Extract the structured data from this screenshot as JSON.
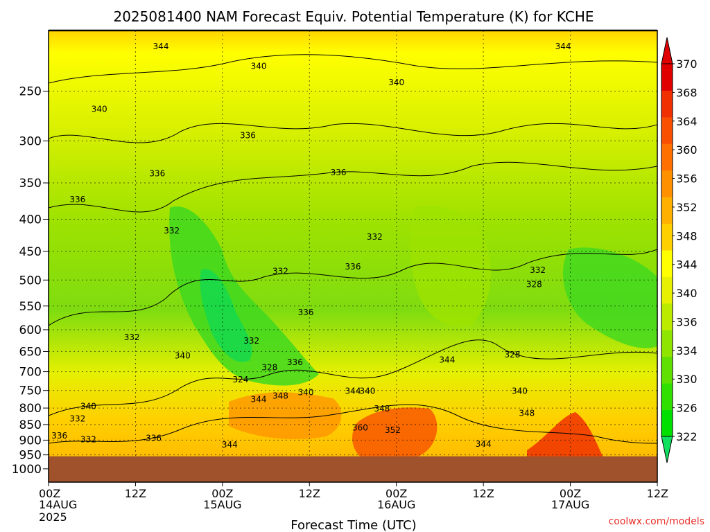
{
  "chart_data": {
    "type": "heatmap",
    "title": "2025081400 NAM Forecast Equiv. Potential Temperature (K) for KCHE",
    "xlabel": "Forecast Time (UTC)",
    "ylabel": "",
    "credit": "coolwx.com/models",
    "x_ticks": [
      {
        "hour": 0,
        "label": "00Z",
        "date": "14AUG",
        "year": "2025"
      },
      {
        "hour": 12,
        "label": "12Z",
        "date": "",
        "year": ""
      },
      {
        "hour": 24,
        "label": "00Z",
        "date": "15AUG",
        "year": ""
      },
      {
        "hour": 36,
        "label": "12Z",
        "date": "",
        "year": ""
      },
      {
        "hour": 48,
        "label": "00Z",
        "date": "16AUG",
        "year": ""
      },
      {
        "hour": 60,
        "label": "12Z",
        "date": "",
        "year": ""
      },
      {
        "hour": 72,
        "label": "00Z",
        "date": "17AUG",
        "year": ""
      },
      {
        "hour": 84,
        "label": "12Z",
        "date": "",
        "year": ""
      }
    ],
    "xlim": [
      0,
      84
    ],
    "y_ticks": [
      250,
      300,
      350,
      400,
      450,
      500,
      550,
      600,
      650,
      700,
      750,
      800,
      850,
      900,
      950,
      1000
    ],
    "ylim": [
      200,
      1050
    ],
    "y_scale": "log",
    "colorbar": {
      "ticks": [
        322,
        326,
        330,
        334,
        336,
        340,
        344,
        348,
        352,
        356,
        360,
        364,
        368,
        370
      ],
      "colors": [
        "#00e000",
        "#2fe000",
        "#5fe000",
        "#8fe400",
        "#bdeb00",
        "#e6f000",
        "#ffff00",
        "#ffd000",
        "#ffb000",
        "#ff9000",
        "#ff7000",
        "#f85000",
        "#f03000",
        "#e00000"
      ]
    },
    "ground_color": "#a0522d",
    "ground_top_hpa": 955,
    "contour_labels": [
      {
        "hour": 15.5,
        "p": 212,
        "text": "344"
      },
      {
        "hour": 29,
        "p": 228,
        "text": "340"
      },
      {
        "hour": 71,
        "p": 212,
        "text": "344"
      },
      {
        "hour": 48,
        "p": 242,
        "text": "340"
      },
      {
        "hour": 7,
        "p": 267,
        "text": "340"
      },
      {
        "hour": 27.5,
        "p": 294,
        "text": "336"
      },
      {
        "hour": 15,
        "p": 338,
        "text": "336"
      },
      {
        "hour": 40,
        "p": 337,
        "text": "336"
      },
      {
        "hour": 4,
        "p": 372,
        "text": "336"
      },
      {
        "hour": 17,
        "p": 417,
        "text": "332"
      },
      {
        "hour": 45,
        "p": 427,
        "text": "332"
      },
      {
        "hour": 32,
        "p": 484,
        "text": "332"
      },
      {
        "hour": 42,
        "p": 476,
        "text": "336"
      },
      {
        "hour": 67.5,
        "p": 482,
        "text": "332"
      },
      {
        "hour": 67,
        "p": 508,
        "text": "328"
      },
      {
        "hour": 35.5,
        "p": 563,
        "text": "336"
      },
      {
        "hour": 11.5,
        "p": 617,
        "text": "332"
      },
      {
        "hour": 28,
        "p": 625,
        "text": "332"
      },
      {
        "hour": 18.5,
        "p": 660,
        "text": "340"
      },
      {
        "hour": 64,
        "p": 658,
        "text": "328"
      },
      {
        "hour": 55,
        "p": 670,
        "text": "344"
      },
      {
        "hour": 30.5,
        "p": 689,
        "text": "328"
      },
      {
        "hour": 34,
        "p": 676,
        "text": "336"
      },
      {
        "hour": 26.5,
        "p": 721,
        "text": "324"
      },
      {
        "hour": 32,
        "p": 765,
        "text": "348"
      },
      {
        "hour": 29,
        "p": 775,
        "text": "344"
      },
      {
        "hour": 35.5,
        "p": 755,
        "text": "340"
      },
      {
        "hour": 42,
        "p": 752,
        "text": "344"
      },
      {
        "hour": 44,
        "p": 752,
        "text": "340"
      },
      {
        "hour": 65,
        "p": 752,
        "text": "340"
      },
      {
        "hour": 5.5,
        "p": 795,
        "text": "340"
      },
      {
        "hour": 46,
        "p": 802,
        "text": "348"
      },
      {
        "hour": 66,
        "p": 815,
        "text": "348"
      },
      {
        "hour": 4,
        "p": 832,
        "text": "332"
      },
      {
        "hour": 43,
        "p": 860,
        "text": "360"
      },
      {
        "hour": 47.5,
        "p": 868,
        "text": "352"
      },
      {
        "hour": 1.5,
        "p": 885,
        "text": "336"
      },
      {
        "hour": 5.5,
        "p": 898,
        "text": "332"
      },
      {
        "hour": 14.5,
        "p": 893,
        "text": "336"
      },
      {
        "hour": 25,
        "p": 915,
        "text": "344"
      },
      {
        "hour": 60,
        "p": 913,
        "text": "344"
      }
    ]
  }
}
